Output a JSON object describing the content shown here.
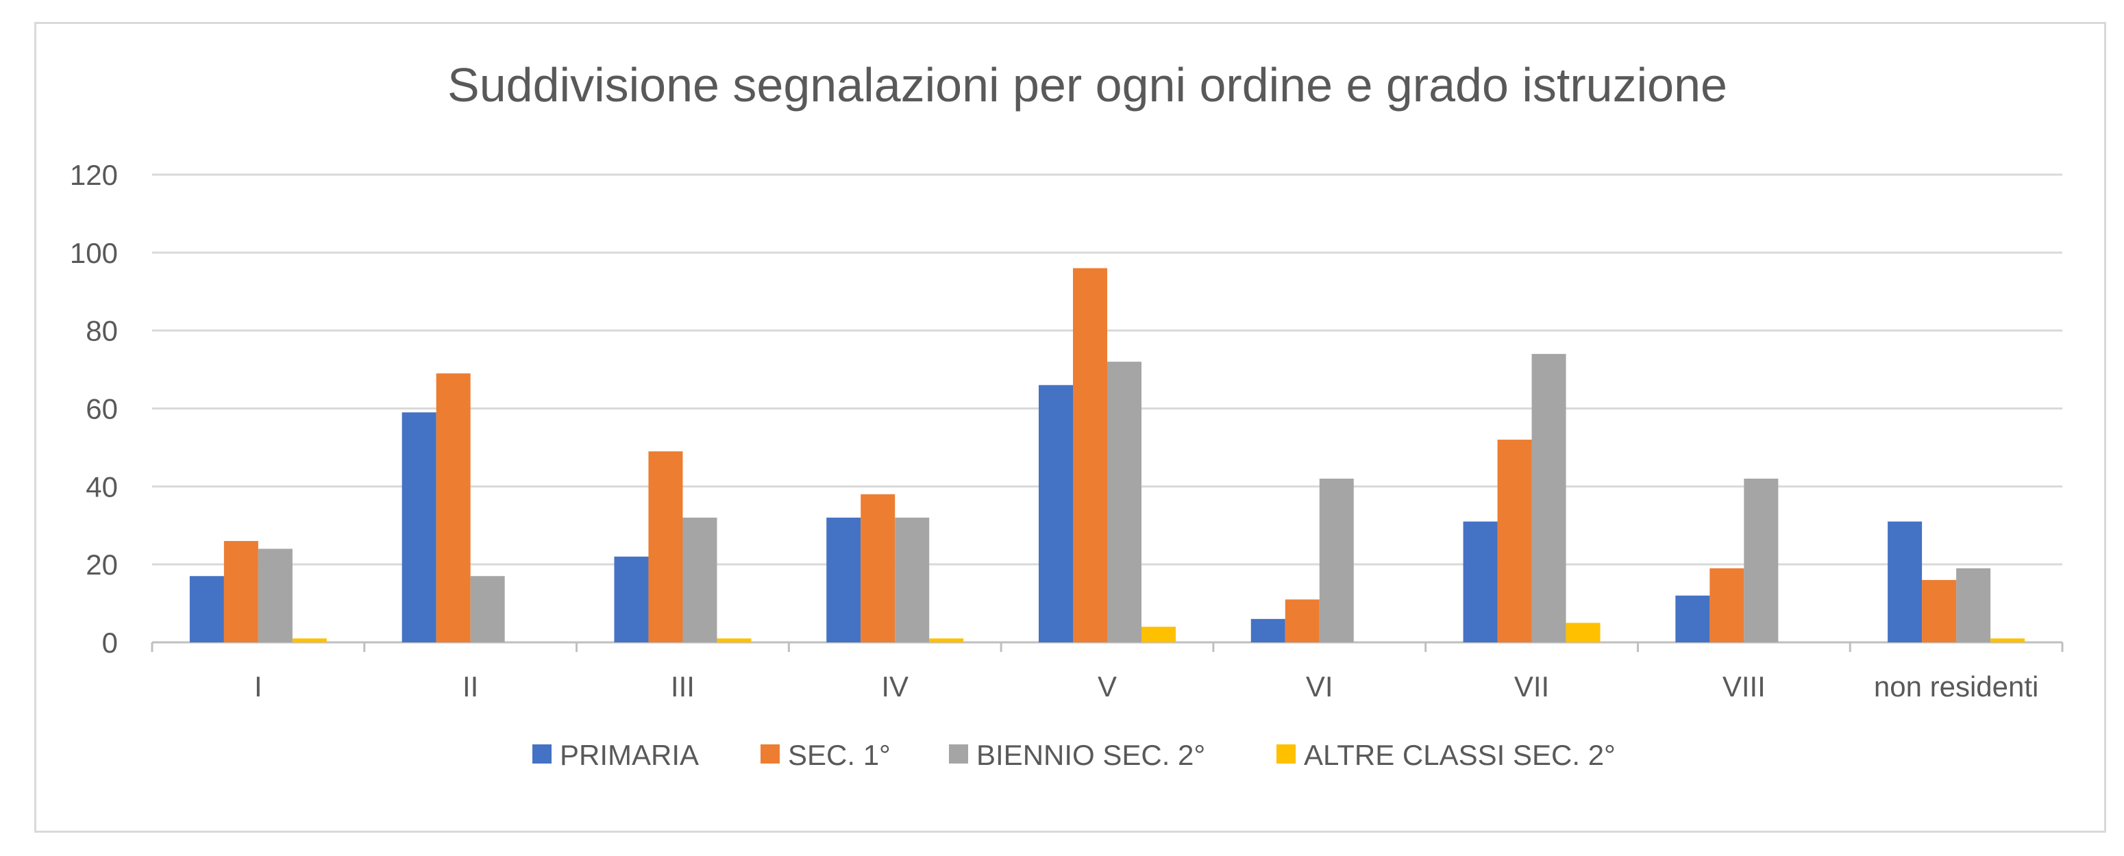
{
  "chart_data": {
    "type": "bar",
    "title": "Suddivisione segnalazioni per ogni ordine e grado istruzione",
    "xlabel": "",
    "ylabel": "",
    "categories": [
      "I",
      "II",
      "III",
      "IV",
      "V",
      "VI",
      "VII",
      "VIII",
      "non residenti"
    ],
    "series": [
      {
        "name": "PRIMARIA",
        "color": "#4472C4",
        "values": [
          17,
          59,
          22,
          32,
          66,
          6,
          31,
          12,
          31
        ]
      },
      {
        "name": "SEC. 1°",
        "color": "#ED7D31",
        "values": [
          26,
          69,
          49,
          38,
          96,
          11,
          52,
          19,
          16
        ]
      },
      {
        "name": "BIENNIO SEC. 2°",
        "color": "#A5A5A5",
        "values": [
          24,
          17,
          32,
          32,
          72,
          42,
          74,
          42,
          19
        ]
      },
      {
        "name": "ALTRE CLASSI SEC. 2°",
        "color": "#FFC000",
        "values": [
          1,
          0,
          1,
          1,
          4,
          0,
          5,
          0,
          1
        ]
      }
    ],
    "ylim": [
      0,
      120
    ],
    "yticks": [
      0,
      20,
      40,
      60,
      80,
      100,
      120
    ],
    "grid": true,
    "legend_position": "bottom",
    "colors": {
      "gridline": "#D9D9D9",
      "axis": "#BFBFBF",
      "text": "#595959",
      "frame": "#D9D9D9"
    }
  }
}
